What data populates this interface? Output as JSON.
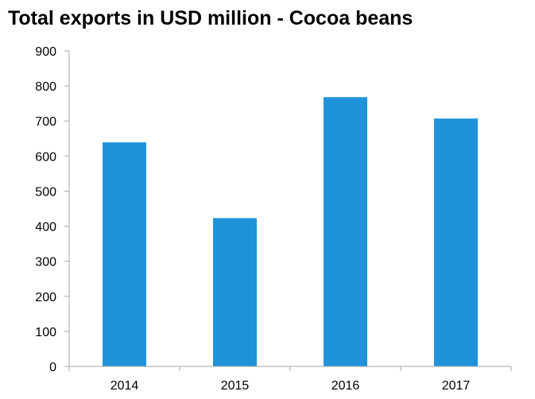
{
  "chart_data": {
    "type": "bar",
    "title": "Total exports in USD million - Cocoa beans",
    "xlabel": "",
    "ylabel": "",
    "categories": [
      "2014",
      "2015",
      "2016",
      "2017"
    ],
    "values": [
      639,
      423,
      768,
      707
    ],
    "ylim": [
      0,
      900
    ],
    "yticks": [
      "0",
      "100",
      "200",
      "300",
      "400",
      "500",
      "600",
      "700",
      "800",
      "900"
    ],
    "grid": false,
    "legend": "none",
    "bar_color": "#1f93d9",
    "axis_color": "#a6a6a6"
  }
}
